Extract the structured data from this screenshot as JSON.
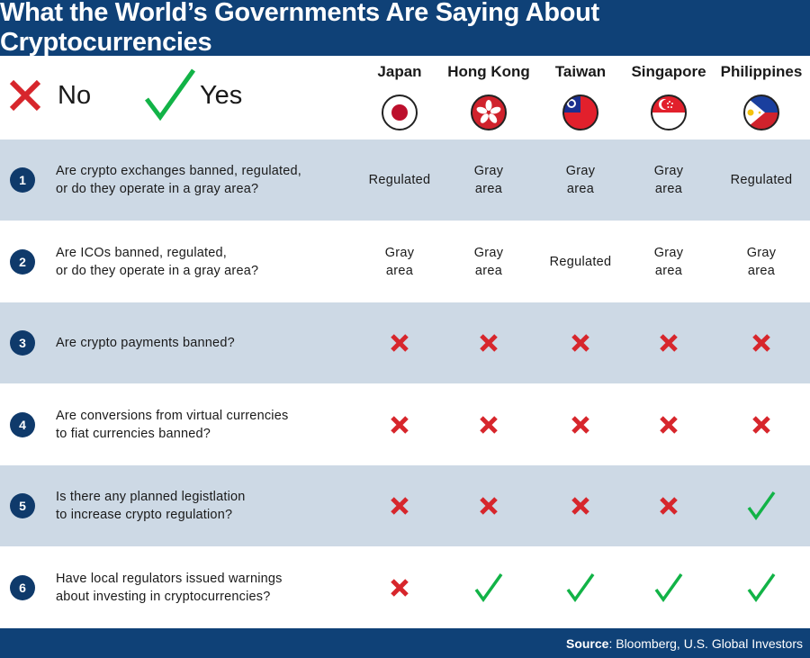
{
  "title": "What the World’s Governments Are Saying About Cryptocurrencies",
  "legend": {
    "no_label": "No",
    "yes_label": "Yes",
    "no_icon": "x-icon",
    "yes_icon": "check-icon"
  },
  "colors": {
    "header_bg": "#0f4177",
    "row_shade": "#cdd9e5",
    "no_red": "#d7262c",
    "yes_green": "#12b347"
  },
  "countries": [
    {
      "name": "Japan",
      "flag_icon": "japan-flag-icon"
    },
    {
      "name": "Hong Kong",
      "flag_icon": "hong-kong-flag-icon"
    },
    {
      "name": "Taiwan",
      "flag_icon": "taiwan-flag-icon"
    },
    {
      "name": "Singapore",
      "flag_icon": "singapore-flag-icon"
    },
    {
      "name": "Philippines",
      "flag_icon": "philippines-flag-icon"
    }
  ],
  "rows": [
    {
      "number": "1",
      "question": "Are crypto exchanges banned, regulated,\nor do they operate in a gray area?",
      "answers": [
        "Regulated",
        "Gray\narea",
        "Gray\narea",
        "Gray\narea",
        "Regulated"
      ]
    },
    {
      "number": "2",
      "question": "Are ICOs banned, regulated,\nor do they operate in a gray area?",
      "answers": [
        "Gray\narea",
        "Gray\narea",
        "Regulated",
        "Gray\narea",
        "Gray\narea"
      ]
    },
    {
      "number": "3",
      "question": "Are crypto payments banned?",
      "answers": [
        "no",
        "no",
        "no",
        "no",
        "no"
      ]
    },
    {
      "number": "4",
      "question": "Are conversions from virtual currencies\nto fiat currencies banned?",
      "answers": [
        "no",
        "no",
        "no",
        "no",
        "no"
      ]
    },
    {
      "number": "5",
      "question": "Is there any planned legistlation\nto increase crypto regulation?",
      "answers": [
        "no",
        "no",
        "no",
        "no",
        "yes"
      ]
    },
    {
      "number": "6",
      "question": "Have local regulators issued warnings\nabout investing in cryptocurrencies?",
      "answers": [
        "no",
        "yes",
        "yes",
        "yes",
        "yes"
      ]
    }
  ],
  "footer": {
    "source_label": "Source",
    "source_text": ": Bloomberg, U.S. Global Investors"
  }
}
